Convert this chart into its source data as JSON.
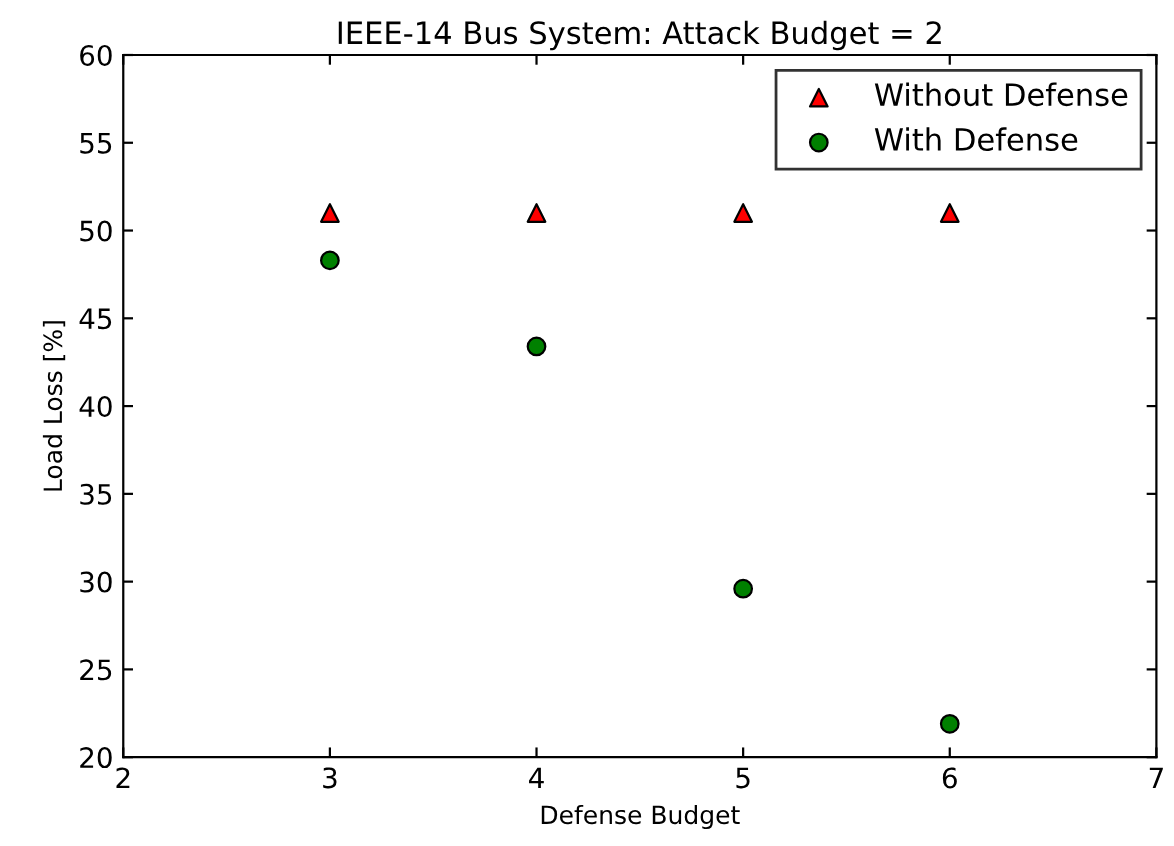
{
  "chart_data": {
    "type": "scatter",
    "title": "IEEE-14 Bus System: Attack Budget = 2",
    "xlabel": "Defense Budget",
    "ylabel": "Load Loss [%]",
    "xlim": [
      2,
      7
    ],
    "xticks": [
      2,
      3,
      4,
      5,
      6,
      7
    ],
    "ylim": [
      20,
      60
    ],
    "yticks": [
      20,
      25,
      30,
      35,
      40,
      45,
      50,
      55,
      60
    ],
    "grid": false,
    "legend": "top right",
    "series": [
      {
        "name": "Without Defense",
        "color": "#ff0000",
        "marker": "triangle",
        "x": [
          3,
          4,
          5,
          6
        ],
        "values": [
          51,
          51,
          51,
          51
        ]
      },
      {
        "name": "With Defense",
        "color": "#008000",
        "marker": "circle",
        "x": [
          3,
          4,
          5,
          6
        ],
        "values": [
          48.3,
          43.4,
          29.6,
          21.9
        ]
      }
    ]
  }
}
